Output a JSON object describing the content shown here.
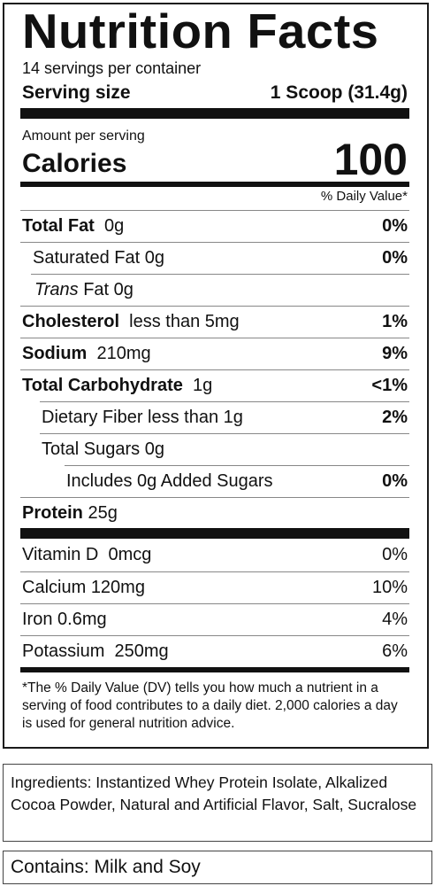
{
  "label": {
    "title": "Nutrition Facts",
    "servings_per_container": "14 servings per container",
    "serving_size_label": "Serving size",
    "serving_size_value": "1 Scoop (31.4g)",
    "amount_per_serving": "Amount per serving",
    "calories_label": "Calories",
    "calories_value": "100",
    "daily_value_header": "% Daily Value*",
    "rows": [
      {
        "name": "Total Fat",
        "amount": "0g",
        "dv": "0%"
      },
      {
        "name": "Saturated Fat",
        "amount": "0g",
        "dv": "0%"
      },
      {
        "name": "Trans",
        "amount": "Fat 0g",
        "dv": ""
      },
      {
        "name": "Cholesterol",
        "amount": "less than 5mg",
        "dv": "1%"
      },
      {
        "name": "Sodium",
        "amount": "210mg",
        "dv": "9%"
      },
      {
        "name": "Total Carbohydrate",
        "amount": "1g",
        "dv": "<1%"
      },
      {
        "name": "Dietary Fiber",
        "amount": "less than 1g",
        "dv": "2%"
      },
      {
        "name": "Total Sugars",
        "amount": "0g",
        "dv": ""
      },
      {
        "name": "Includes 0g Added Sugars",
        "amount": "",
        "dv": "0%"
      },
      {
        "name": "Protein",
        "amount": "25g",
        "dv": ""
      }
    ],
    "vitamins": [
      {
        "name": "Vitamin D",
        "amount": "0mcg",
        "dv": "0%"
      },
      {
        "name": "Calcium",
        "amount": "120mg",
        "dv": "10%"
      },
      {
        "name": "Iron",
        "amount": "0.6mg",
        "dv": "4%"
      },
      {
        "name": "Potassium",
        "amount": "250mg",
        "dv": "6%"
      }
    ],
    "footnote": "*The % Daily Value (DV) tells you how much a nutrient in a serving of food contributes to a daily diet. 2,000 calories a day is used for general nutrition advice."
  },
  "ingredients": "Ingredients: Instantized Whey Protein Isolate, Alkalized Cocoa Powder, Natural and Artificial Flavor, Salt, Sucralose",
  "contains": "Contains: Milk and Soy"
}
